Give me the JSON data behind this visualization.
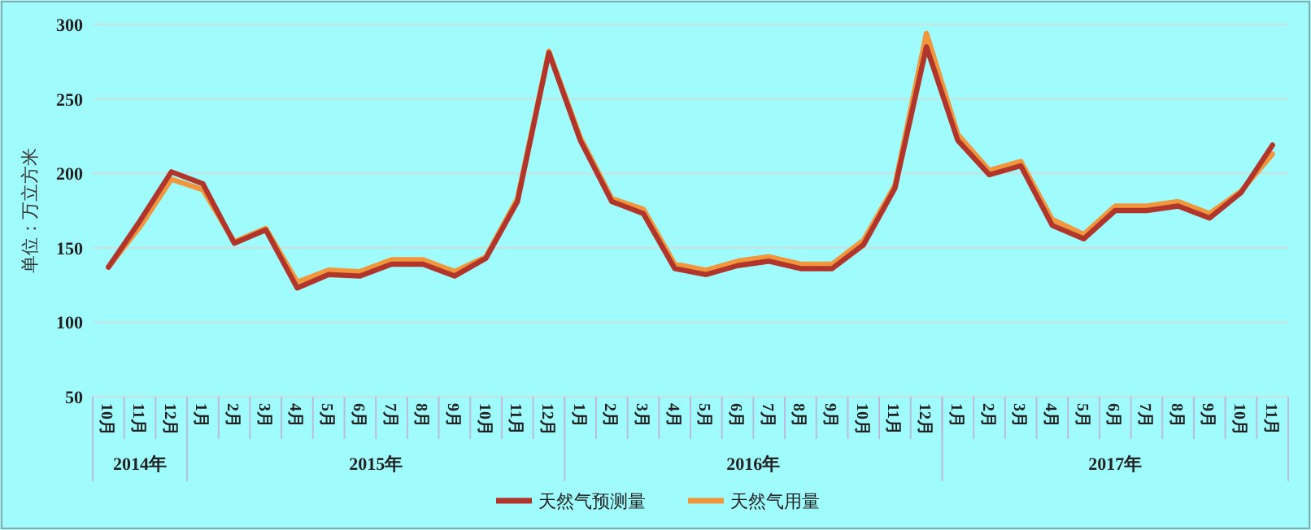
{
  "chart_data": {
    "type": "line",
    "ylabel": "单位：万立方米",
    "categories": [
      "10月",
      "11月",
      "12月",
      "1月",
      "2月",
      "3月",
      "4月",
      "5月",
      "6月",
      "7月",
      "8月",
      "9月",
      "10月",
      "11月",
      "12月",
      "1月",
      "2月",
      "3月",
      "4月",
      "5月",
      "6月",
      "7月",
      "8月",
      "9月",
      "10月",
      "11月",
      "12月",
      "1月",
      "2月",
      "3月",
      "4月",
      "5月",
      "6月",
      "7月",
      "8月",
      "9月",
      "10月",
      "11月"
    ],
    "annotations": [
      "2014年",
      "2015年",
      "2016年",
      "2017年"
    ],
    "series": [
      {
        "name": "天然气预测量",
        "color": "#b0362c",
        "values": [
          137,
          168,
          201,
          193,
          153,
          162,
          123,
          132,
          131,
          139,
          139,
          131,
          143,
          181,
          281,
          222,
          181,
          173,
          136,
          132,
          138,
          141,
          136,
          136,
          152,
          190,
          285,
          222,
          199,
          205,
          165,
          156,
          175,
          175,
          178,
          170,
          187,
          219
        ]
      },
      {
        "name": "天然气用量",
        "color": "#f0963c",
        "values": [
          137,
          164,
          196,
          189,
          154,
          163,
          127,
          135,
          134,
          142,
          142,
          134,
          144,
          183,
          282,
          224,
          183,
          176,
          139,
          135,
          141,
          144,
          139,
          139,
          155,
          192,
          294,
          226,
          202,
          208,
          169,
          159,
          178,
          178,
          181,
          173,
          188,
          213
        ]
      }
    ],
    "ylim": [
      50,
      300
    ],
    "yticks": [
      50,
      100,
      150,
      200,
      250,
      300
    ],
    "grid": "y",
    "legend": "bottom",
    "marker": "none",
    "line_style": "solid"
  }
}
